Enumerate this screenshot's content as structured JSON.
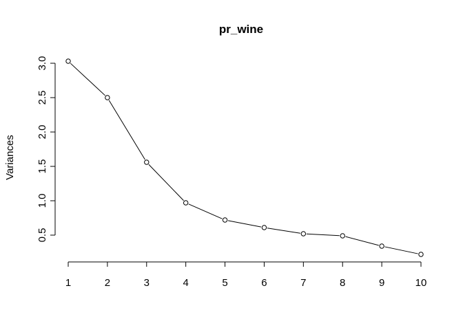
{
  "chart_data": {
    "type": "line",
    "title": "pr_wine",
    "xlabel": "",
    "ylabel": "Variances",
    "x": [
      1,
      2,
      3,
      4,
      5,
      6,
      7,
      8,
      9,
      10
    ],
    "series": [
      {
        "values": [
          3.03,
          2.5,
          1.56,
          0.97,
          0.72,
          0.61,
          0.52,
          0.49,
          0.34,
          0.22
        ]
      }
    ],
    "xticks": [
      "1",
      "2",
      "3",
      "4",
      "5",
      "6",
      "7",
      "8",
      "9",
      "10"
    ],
    "yticks": [
      "0.5",
      "1.0",
      "1.5",
      "2.0",
      "2.5",
      "3.0"
    ],
    "ylim": [
      0.22,
      3.03
    ],
    "grid": false,
    "markers": "open-circle",
    "colors": {
      "line": "#000000",
      "marker_stroke": "#000000",
      "marker_fill": "#ffffff"
    }
  }
}
